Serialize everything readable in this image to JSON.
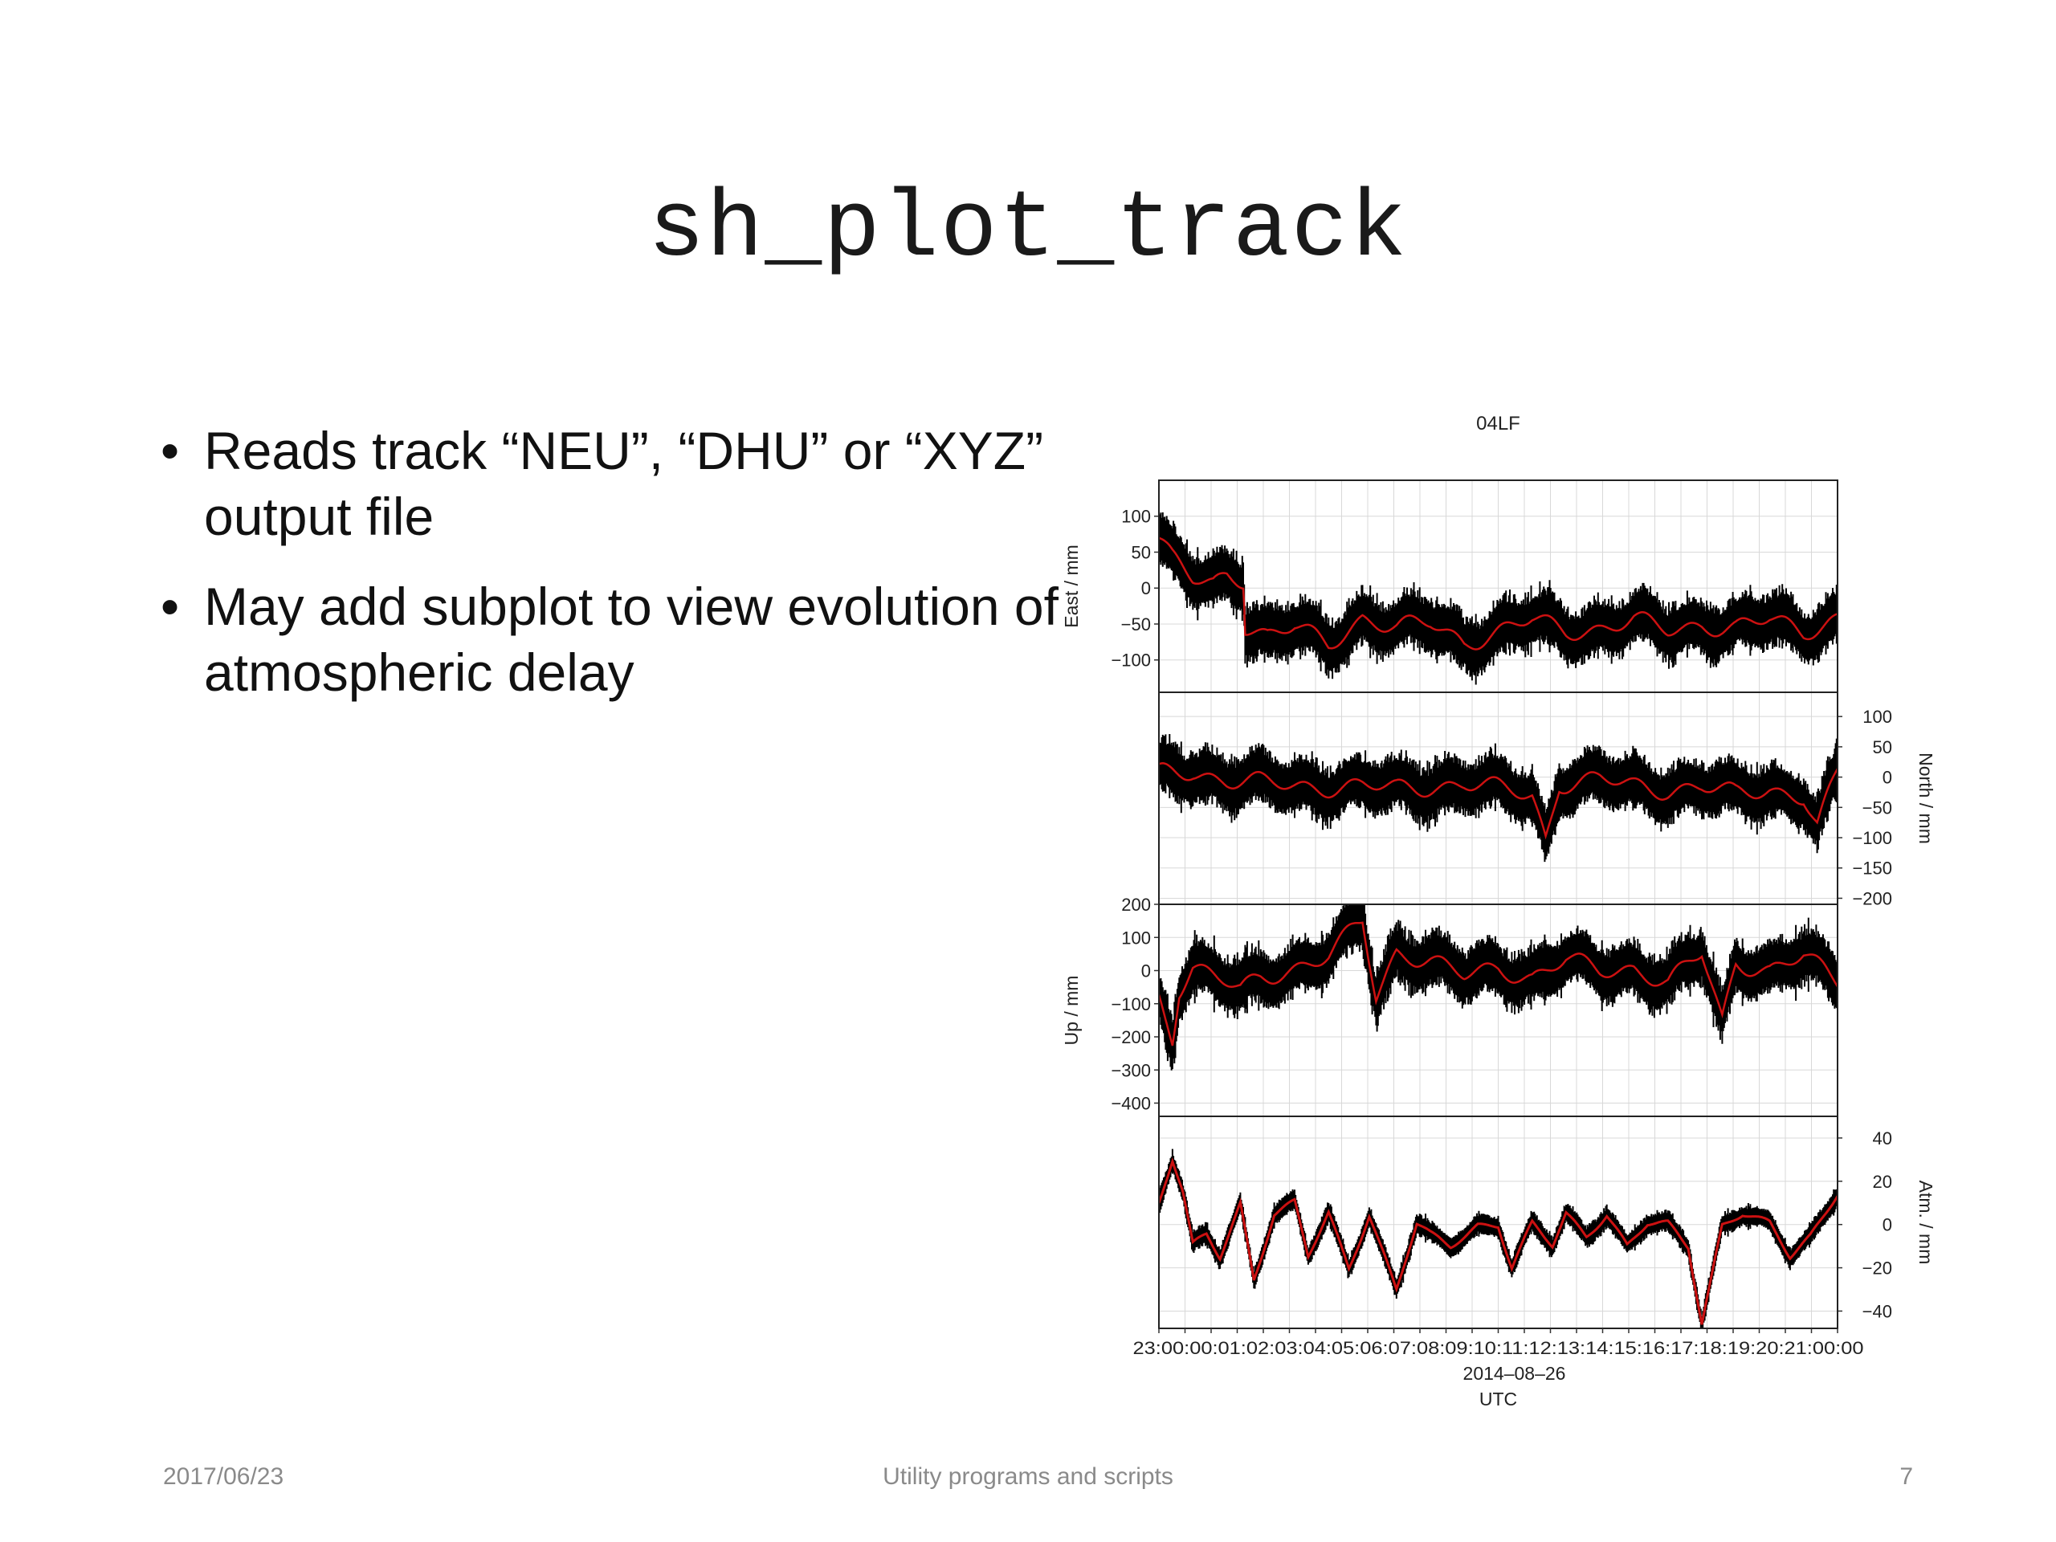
{
  "slide": {
    "title": "sh_plot_track",
    "bullets": [
      "Reads track “NEU”, “DHU” or “XYZ” output file",
      "May add subplot to view evolution of atmospheric delay"
    ],
    "footer": {
      "date": "2017/06/23",
      "center": "Utility programs and scripts",
      "page": "7"
    }
  },
  "chart_data": {
    "type": "line",
    "title": "04LF",
    "xlabel": "UTC",
    "x_date_label": "2014–08–26",
    "x_tick_string": "23:00:00:01:02:03:04:05:06:07:08:09:10:11:12:13:14:15:16:17:18:19:20:21:00:00",
    "series_colors": {
      "observation": "#000000",
      "smoothed": "#cc1111"
    },
    "grid": true,
    "panels": [
      {
        "ylabel": "East / mm",
        "ylabel_side": "left",
        "ylim": [
          -145,
          150
        ],
        "yticks": [
          100,
          50,
          0,
          -50,
          -100
        ],
        "ytick_labels": [
          "100",
          "50",
          "0",
          "−50",
          "−100"
        ],
        "profile": [
          [
            0,
            70
          ],
          [
            0.02,
            40
          ],
          [
            0.05,
            10
          ],
          [
            0.08,
            5
          ],
          [
            0.1,
            20
          ],
          [
            0.125,
            15
          ],
          [
            0.127,
            -50
          ],
          [
            0.16,
            -65
          ],
          [
            0.2,
            -55
          ],
          [
            0.25,
            -80
          ],
          [
            0.3,
            -40
          ],
          [
            0.35,
            -55
          ],
          [
            0.4,
            -50
          ],
          [
            0.45,
            -75
          ],
          [
            0.5,
            -60
          ],
          [
            0.55,
            -45
          ],
          [
            0.6,
            -60
          ],
          [
            0.65,
            -55
          ],
          [
            0.7,
            -45
          ],
          [
            0.75,
            -60
          ],
          [
            0.8,
            -50
          ],
          [
            0.85,
            -55
          ],
          [
            0.9,
            -45
          ],
          [
            0.95,
            -60
          ],
          [
            1,
            -40
          ]
        ]
      },
      {
        "ylabel": "North / mm",
        "ylabel_side": "right",
        "ylim": [
          -210,
          140
        ],
        "yticks": [
          100,
          50,
          0,
          -50,
          -100,
          -150,
          -200
        ],
        "ytick_labels": [
          "100",
          "50",
          "0",
          "−50",
          "−100",
          "−150",
          "−200"
        ],
        "profile": [
          [
            0,
            5
          ],
          [
            0.05,
            10
          ],
          [
            0.1,
            -5
          ],
          [
            0.15,
            -10
          ],
          [
            0.2,
            -15
          ],
          [
            0.25,
            -15
          ],
          [
            0.3,
            -15
          ],
          [
            0.35,
            -20
          ],
          [
            0.4,
            -15
          ],
          [
            0.45,
            -10
          ],
          [
            0.5,
            -20
          ],
          [
            0.55,
            -30
          ],
          [
            0.57,
            -100
          ],
          [
            0.59,
            -10
          ],
          [
            0.65,
            -5
          ],
          [
            0.7,
            -15
          ],
          [
            0.75,
            -20
          ],
          [
            0.8,
            -15
          ],
          [
            0.85,
            -30
          ],
          [
            0.9,
            -20
          ],
          [
            0.95,
            -30
          ],
          [
            0.97,
            -80
          ],
          [
            1,
            5
          ]
        ]
      },
      {
        "ylabel": "Up / mm",
        "ylabel_side": "left",
        "ylim": [
          -440,
          200
        ],
        "yticks": [
          200,
          100,
          0,
          -100,
          -200,
          -300,
          -400
        ],
        "ytick_labels": [
          "200",
          "100",
          "0",
          "−100",
          "−200",
          "−300",
          "−400"
        ],
        "profile": [
          [
            0,
            -80
          ],
          [
            0.02,
            -200
          ],
          [
            0.03,
            -50
          ],
          [
            0.05,
            10
          ],
          [
            0.08,
            -20
          ],
          [
            0.12,
            -60
          ],
          [
            0.15,
            -20
          ],
          [
            0.2,
            10
          ],
          [
            0.25,
            40
          ],
          [
            0.3,
            150
          ],
          [
            0.32,
            -80
          ],
          [
            0.35,
            60
          ],
          [
            0.4,
            30
          ],
          [
            0.45,
            -20
          ],
          [
            0.5,
            10
          ],
          [
            0.55,
            -20
          ],
          [
            0.6,
            30
          ],
          [
            0.65,
            0
          ],
          [
            0.7,
            10
          ],
          [
            0.75,
            -40
          ],
          [
            0.8,
            50
          ],
          [
            0.83,
            -150
          ],
          [
            0.85,
            30
          ],
          [
            0.9,
            0
          ],
          [
            0.95,
            40
          ],
          [
            1,
            -30
          ]
        ]
      },
      {
        "ylabel": "Atm. / mm",
        "ylabel_side": "right",
        "ylim": [
          -48,
          50
        ],
        "yticks": [
          40,
          20,
          0,
          -20,
          -40
        ],
        "ytick_labels": [
          "40",
          "20",
          "0",
          "−20",
          "−40"
        ],
        "profile": [
          [
            0,
            10
          ],
          [
            0.02,
            30
          ],
          [
            0.035,
            15
          ],
          [
            0.05,
            -10
          ],
          [
            0.07,
            -5
          ],
          [
            0.09,
            -15
          ],
          [
            0.12,
            10
          ],
          [
            0.14,
            -25
          ],
          [
            0.17,
            5
          ],
          [
            0.2,
            10
          ],
          [
            0.22,
            -15
          ],
          [
            0.25,
            5
          ],
          [
            0.28,
            -20
          ],
          [
            0.31,
            5
          ],
          [
            0.35,
            -30
          ],
          [
            0.38,
            0
          ],
          [
            0.4,
            -5
          ],
          [
            0.43,
            -10
          ],
          [
            0.47,
            0
          ],
          [
            0.5,
            0
          ],
          [
            0.52,
            -20
          ],
          [
            0.55,
            0
          ],
          [
            0.58,
            -10
          ],
          [
            0.6,
            5
          ],
          [
            0.63,
            -5
          ],
          [
            0.66,
            5
          ],
          [
            0.69,
            -10
          ],
          [
            0.72,
            0
          ],
          [
            0.75,
            0
          ],
          [
            0.78,
            -10
          ],
          [
            0.8,
            -45
          ],
          [
            0.83,
            0
          ],
          [
            0.86,
            5
          ],
          [
            0.9,
            0
          ],
          [
            0.93,
            -15
          ],
          [
            0.96,
            -5
          ],
          [
            1,
            15
          ]
        ]
      }
    ]
  }
}
